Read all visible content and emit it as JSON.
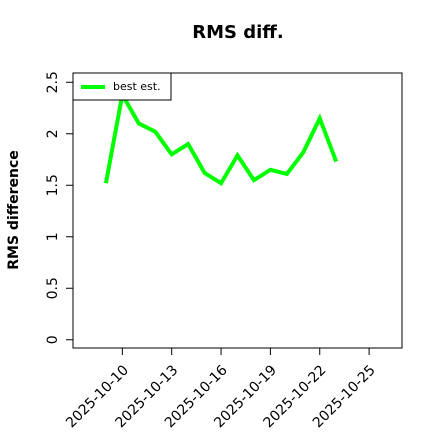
{
  "chart_data": {
    "type": "line",
    "title": "RMS diff.",
    "y_label": "RMS difference",
    "x": [
      "2025-10-09",
      "2025-10-10",
      "2025-10-11",
      "2025-10-12",
      "2025-10-13",
      "2025-10-14",
      "2025-10-15",
      "2025-10-16",
      "2025-10-17",
      "2025-10-18",
      "2025-10-19",
      "2025-10-20",
      "2025-10-21",
      "2025-10-22",
      "2025-10-23"
    ],
    "series": [
      {
        "name": "best est.",
        "color": "#00ff00",
        "values": [
          1.52,
          2.38,
          2.1,
          2.02,
          1.8,
          1.9,
          1.62,
          1.52,
          1.79,
          1.55,
          1.65,
          1.61,
          1.82,
          2.15,
          1.73
        ]
      }
    ],
    "xlim": [
      "2025-10-07",
      "2025-10-27"
    ],
    "xticks": [
      "2025-10-10",
      "2025-10-13",
      "2025-10-16",
      "2025-10-19",
      "2025-10-22",
      "2025-10-25"
    ],
    "ylim": [
      -0.08,
      2.59
    ],
    "yticks": [
      0.0,
      0.5,
      1.0,
      1.5,
      2.0,
      2.5
    ],
    "legend": "top-left"
  }
}
